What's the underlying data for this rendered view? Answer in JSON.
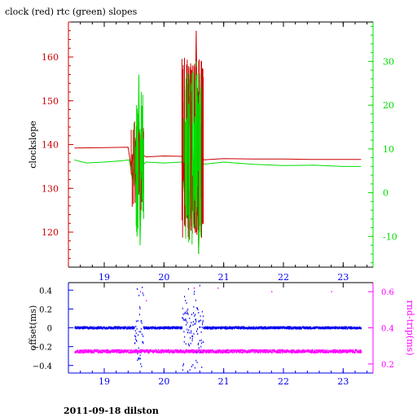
{
  "colors": {
    "red": "#cc0000",
    "green": "#00dd00",
    "blue": "#0000ee",
    "magenta": "#ff00ff",
    "black": "#000000"
  },
  "title": "clock (red) rtc (green) slopes",
  "footer": "2011-09-18 dilston",
  "chart_data": [
    {
      "type": "line",
      "title": "clock (red) rtc (green) slopes",
      "xlabel": "",
      "ylabel": "clockslope",
      "xlim": [
        18.4,
        23.5
      ],
      "ylim": [
        112,
        168
      ],
      "y2lim": [
        -17,
        39
      ],
      "x_ticks": [
        19,
        20,
        21,
        22,
        23
      ],
      "y_ticks": [
        120,
        130,
        140,
        150,
        160
      ],
      "y2_ticks": [
        -10,
        0,
        10,
        20,
        30
      ],
      "grid": false,
      "legend": "none",
      "series": [
        {
          "axis": "left",
          "color": "#cc0000",
          "x": [
            18.5,
            19.0,
            19.4,
            19.45,
            19.5,
            19.55,
            19.58,
            19.6,
            19.63,
            19.66,
            19.7,
            20.0,
            20.3,
            20.34,
            20.38,
            20.42,
            20.46,
            20.5,
            20.54,
            20.58,
            20.62,
            20.66,
            21.0,
            21.5,
            22.0,
            22.5,
            23.0,
            23.3
          ],
          "y": [
            139.2,
            139.3,
            139.4,
            134.8,
            139.0,
            125.0,
            146.0,
            120.0,
            138.0,
            137.5,
            137.2,
            137.4,
            137.3,
            130.0,
            147.0,
            124.0,
            157.0,
            121.0,
            166.0,
            115.0,
            148.0,
            136.5,
            136.8,
            136.7,
            136.7,
            136.6,
            136.6,
            136.6
          ]
        },
        {
          "axis": "right",
          "color": "#00dd00",
          "x": [
            18.5,
            18.7,
            19.0,
            19.3,
            19.42,
            19.47,
            19.52,
            19.55,
            19.58,
            19.6,
            19.63,
            19.66,
            19.7,
            20.0,
            20.3,
            20.34,
            20.38,
            20.42,
            20.46,
            20.5,
            20.54,
            20.58,
            20.62,
            20.66,
            21.0,
            21.5,
            22.0,
            22.5,
            23.0,
            23.3
          ],
          "y": [
            7.5,
            6.8,
            7.0,
            7.3,
            7.5,
            3.0,
            10.0,
            -10.0,
            27.0,
            -12.0,
            9.0,
            6.5,
            7.0,
            6.8,
            7.0,
            0.0,
            15.0,
            -2.0,
            25.0,
            -8.0,
            30.0,
            -14.0,
            20.0,
            6.5,
            7.0,
            6.5,
            6.2,
            6.3,
            6.0,
            6.0
          ]
        }
      ]
    },
    {
      "type": "scatter",
      "title": "",
      "xlabel": "",
      "ylabel": "offset(ms)",
      "y2label": "rnd-trip(ms)",
      "xlim": [
        18.4,
        23.5
      ],
      "ylim": [
        -0.48,
        0.48
      ],
      "y2lim": [
        0.15,
        0.65
      ],
      "x_ticks": [
        19,
        20,
        21,
        22,
        23
      ],
      "y_ticks": [
        0.4,
        0.2,
        0,
        -0.2,
        -0.4
      ],
      "y2_ticks": [
        0.6,
        0.4,
        0.2
      ],
      "y2_tick_labels": [
        "0.6",
        "0.4",
        "0.2"
      ],
      "y_tick_labels": [
        "0.4",
        "0.2",
        "0",
        "−0.2",
        "−0.4"
      ],
      "grid": false,
      "legend": "none",
      "series": [
        {
          "axis": "left",
          "color": "#0000ee",
          "baseline": 0.0,
          "spread": 0.01,
          "x_range": [
            18.5,
            23.3
          ],
          "disturbed_intervals": [
            [
              19.5,
              19.65,
              0.45
            ],
            [
              20.3,
              20.65,
              0.45
            ]
          ]
        },
        {
          "axis": "right",
          "color": "#ff00ff",
          "baseline": 0.27,
          "spread": 0.008,
          "x_range": [
            18.5,
            23.3
          ],
          "outliers": [
            [
              19.6,
              0.6
            ],
            [
              19.7,
              0.55
            ],
            [
              20.5,
              0.62
            ],
            [
              20.9,
              0.62
            ],
            [
              21.8,
              0.6
            ],
            [
              22.8,
              0.6
            ]
          ]
        }
      ]
    }
  ]
}
